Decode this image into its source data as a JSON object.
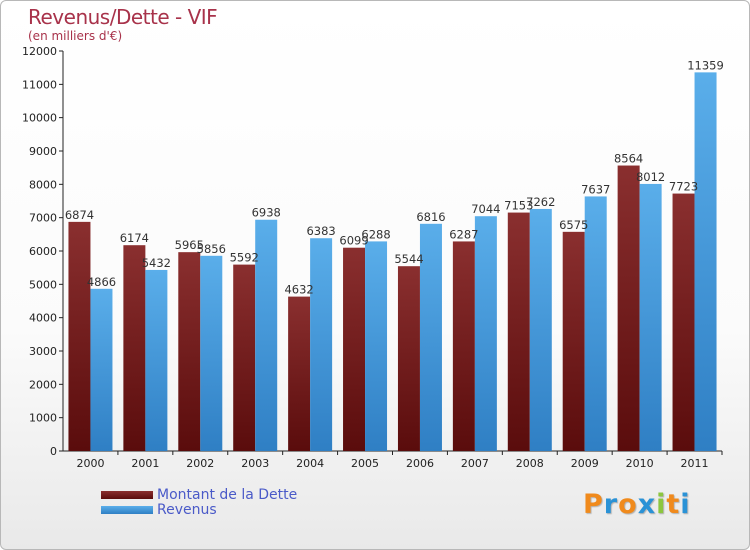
{
  "header": {
    "title": "Revenus/Dette - VIF",
    "subtitle": "(en milliers d'€)"
  },
  "logo": {
    "letters": [
      "P",
      "r",
      "o",
      "x",
      "i",
      "t",
      "i"
    ],
    "colors": [
      "#f08a1c",
      "#2a92d6",
      "#f08a1c",
      "#2a92d6",
      "#8cc63f",
      "#f08a1c",
      "#2a92d6"
    ]
  },
  "chart_data": {
    "type": "bar",
    "title": "Revenus/Dette - VIF",
    "subtitle": "(en milliers d'€)",
    "categories": [
      "2000",
      "2001",
      "2002",
      "2003",
      "2004",
      "2005",
      "2006",
      "2007",
      "2008",
      "2009",
      "2010",
      "2011"
    ],
    "series": [
      {
        "name": "Montant de la Dette",
        "color": "#7a1e1e",
        "values": [
          6874,
          6174,
          5965,
          5592,
          4632,
          6099,
          5544,
          6287,
          7153,
          6575,
          8564,
          7723
        ]
      },
      {
        "name": "Revenus",
        "color": "#4fa3e0",
        "values": [
          4866,
          5432,
          5856,
          6938,
          6383,
          6288,
          6816,
          7044,
          7262,
          7637,
          8012,
          11359
        ]
      }
    ],
    "ylim": [
      0,
      12000
    ],
    "ytick_step": 1000,
    "yticks": [
      "0",
      "1000",
      "2000",
      "3000",
      "4000",
      "5000",
      "6000",
      "7000",
      "8000",
      "9000",
      "10000",
      "11000",
      "12000"
    ],
    "xlabel": "",
    "ylabel": "",
    "grid": false,
    "legend_position": "bottom-left"
  }
}
